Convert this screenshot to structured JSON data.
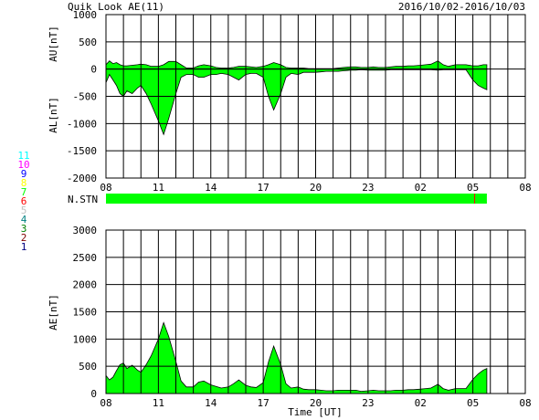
{
  "header": {
    "title": "Quik Look AE(11)",
    "date_range": "2016/10/02-2016/10/03"
  },
  "colors": {
    "fill": "#00ff00",
    "line": "#000000",
    "grid": "#000000",
    "marker": "#ff0000"
  },
  "chart_data": [
    {
      "type": "area",
      "title": "Quik Look AE(11)",
      "ylabel_upper": "AU[nT]",
      "ylabel_lower": "AL[nT]",
      "ylim": [
        -2000,
        1000
      ],
      "yticks": [
        1000,
        500,
        0,
        -500,
        -1000,
        -1500,
        -2000
      ],
      "xticks": [
        "08",
        "11",
        "14",
        "17",
        "20",
        "23",
        "02",
        "05",
        "08"
      ],
      "x_unit": "hours UT from 2016/10/02 08:00",
      "series": [
        {
          "x": [
            0.0,
            0.2,
            0.4,
            0.6,
            0.8,
            1.0,
            1.2,
            1.5,
            1.8,
            2.0,
            2.3,
            2.6,
            3.0,
            3.3,
            3.6,
            4.0,
            4.3,
            4.6,
            5.0,
            5.3,
            5.6,
            6.0,
            6.3,
            6.6,
            7.0,
            7.3,
            7.6,
            8.0,
            8.3,
            8.6,
            9.0,
            9.3,
            9.6,
            10.0,
            10.3,
            10.6,
            11.0,
            11.3,
            11.6,
            12.0,
            12.3,
            12.6,
            13.0,
            13.3,
            13.6,
            14.0,
            14.3,
            14.6,
            15.0,
            15.3,
            15.6,
            16.0,
            16.3,
            16.6,
            17.0,
            17.3,
            17.6,
            18.0,
            18.3,
            18.6,
            19.0,
            19.3,
            19.6,
            20.0,
            20.3,
            20.6,
            21.0,
            21.3,
            21.6,
            21.8
          ],
          "values": [
            80,
            150,
            100,
            120,
            80,
            60,
            60,
            70,
            80,
            90,
            80,
            50,
            50,
            80,
            140,
            140,
            80,
            20,
            20,
            60,
            80,
            60,
            30,
            20,
            20,
            30,
            50,
            50,
            40,
            30,
            50,
            80,
            120,
            80,
            30,
            20,
            20,
            20,
            10,
            10,
            10,
            10,
            10,
            20,
            30,
            40,
            40,
            30,
            30,
            40,
            30,
            30,
            40,
            50,
            50,
            60,
            60,
            70,
            80,
            90,
            150,
            80,
            50,
            80,
            80,
            80,
            60,
            60,
            80,
            80
          ]
        },
        {
          "x": [
            0.0,
            0.2,
            0.4,
            0.6,
            0.8,
            1.0,
            1.2,
            1.5,
            1.8,
            2.0,
            2.3,
            2.6,
            3.0,
            3.3,
            3.6,
            4.0,
            4.3,
            4.6,
            5.0,
            5.3,
            5.6,
            6.0,
            6.3,
            6.6,
            7.0,
            7.3,
            7.6,
            8.0,
            8.3,
            8.6,
            9.0,
            9.3,
            9.6,
            10.0,
            10.3,
            10.6,
            11.0,
            11.3,
            11.6,
            12.0,
            12.3,
            12.6,
            13.0,
            13.3,
            13.6,
            14.0,
            14.3,
            14.6,
            15.0,
            15.3,
            15.6,
            16.0,
            16.3,
            16.6,
            17.0,
            17.3,
            17.6,
            18.0,
            18.3,
            18.6,
            19.0,
            19.3,
            19.6,
            20.0,
            20.3,
            20.6,
            21.0,
            21.3,
            21.6,
            21.8
          ],
          "values": [
            -250,
            -100,
            -200,
            -300,
            -450,
            -500,
            -400,
            -450,
            -350,
            -300,
            -450,
            -650,
            -950,
            -1200,
            -900,
            -450,
            -150,
            -100,
            -100,
            -150,
            -150,
            -100,
            -100,
            -80,
            -100,
            -150,
            -200,
            -100,
            -80,
            -80,
            -150,
            -500,
            -750,
            -450,
            -150,
            -80,
            -100,
            -60,
            -60,
            -60,
            -50,
            -40,
            -40,
            -40,
            -30,
            -20,
            -20,
            -10,
            -20,
            -20,
            -20,
            -20,
            -10,
            -10,
            -10,
            -10,
            -10,
            -10,
            -10,
            -10,
            -20,
            -10,
            -10,
            -10,
            -10,
            -10,
            -200,
            -300,
            -350,
            -380
          ]
        }
      ]
    },
    {
      "type": "bar",
      "ylabel": "N.STN",
      "xticks": [
        "08",
        "11",
        "14",
        "17",
        "20",
        "23",
        "02",
        "05",
        "08"
      ],
      "x": [
        0.0,
        21.8
      ],
      "values": [
        11,
        11
      ],
      "marker_x": 21.1,
      "station_legend": [
        "11",
        "10",
        "9",
        "8",
        "7",
        "6",
        "5",
        "4",
        "3",
        "2",
        "1"
      ],
      "station_colors": [
        "#00ffff",
        "#ff00ff",
        "#0000ff",
        "#ffff00",
        "#00ff00",
        "#ff0000",
        "#c0c0c0",
        "#008080",
        "#008000",
        "#800000",
        "#000080"
      ]
    },
    {
      "type": "area",
      "ylabel": "AE[nT]",
      "xlabel": "Time [UT]",
      "ylim": [
        0,
        3000
      ],
      "yticks": [
        3000,
        2500,
        2000,
        1500,
        1000,
        500,
        0
      ],
      "xticks": [
        "08",
        "11",
        "14",
        "17",
        "20",
        "23",
        "02",
        "05",
        "08"
      ],
      "series": [
        {
          "x": [
            0.0,
            0.2,
            0.4,
            0.6,
            0.8,
            1.0,
            1.2,
            1.5,
            1.8,
            2.0,
            2.3,
            2.6,
            3.0,
            3.3,
            3.6,
            4.0,
            4.3,
            4.6,
            5.0,
            5.3,
            5.6,
            6.0,
            6.3,
            6.6,
            7.0,
            7.3,
            7.6,
            8.0,
            8.3,
            8.6,
            9.0,
            9.3,
            9.6,
            10.0,
            10.3,
            10.6,
            11.0,
            11.3,
            11.6,
            12.0,
            12.3,
            12.6,
            13.0,
            13.3,
            13.6,
            14.0,
            14.3,
            14.6,
            15.0,
            15.3,
            15.6,
            16.0,
            16.3,
            16.6,
            17.0,
            17.3,
            17.6,
            18.0,
            18.3,
            18.6,
            19.0,
            19.3,
            19.6,
            20.0,
            20.3,
            20.6,
            21.0,
            21.3,
            21.6,
            21.8
          ],
          "values": [
            330,
            250,
            300,
            420,
            530,
            560,
            460,
            520,
            430,
            390,
            530,
            700,
            1000,
            1300,
            1040,
            590,
            230,
            120,
            120,
            210,
            230,
            160,
            130,
            100,
            120,
            180,
            250,
            150,
            120,
            110,
            200,
            580,
            870,
            530,
            180,
            100,
            120,
            80,
            70,
            70,
            60,
            50,
            50,
            60,
            60,
            60,
            60,
            40,
            50,
            60,
            50,
            50,
            50,
            60,
            60,
            70,
            70,
            80,
            90,
            100,
            170,
            90,
            60,
            90,
            90,
            90,
            260,
            360,
            430,
            460
          ]
        }
      ]
    }
  ]
}
